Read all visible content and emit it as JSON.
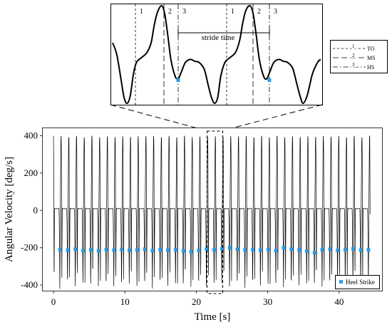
{
  "chart_data": [
    {
      "panel": "zoom-inset",
      "type": "line",
      "phase_markers": [
        {
          "number": "1",
          "name": "TO"
        },
        {
          "number": "2",
          "name": "MS"
        },
        {
          "number": "3",
          "name": "HS"
        },
        {
          "number": "1",
          "name": "TO"
        },
        {
          "number": "2",
          "name": "MS"
        },
        {
          "number": "3",
          "name": "HS"
        }
      ],
      "annotation": "stride time",
      "legend": [
        {
          "number": "1",
          "label": "TO",
          "style": "dashed"
        },
        {
          "number": "2",
          "label": "MS",
          "style": "long-dashed"
        },
        {
          "number": "3",
          "label": "HS",
          "style": "dash-dot"
        }
      ],
      "legend_placement": "right"
    },
    {
      "panel": "main",
      "type": "line",
      "xlabel": "Time [s]",
      "ylabel": "Angular Velocity [deg/s]",
      "xlim": [
        -1.5,
        46
      ],
      "ylim": [
        -430,
        440
      ],
      "xticks": [
        0,
        10,
        20,
        30,
        40
      ],
      "yticks": [
        400,
        200,
        0,
        -200,
        -400
      ],
      "grid": false,
      "cycle_count": 41,
      "cycle_period": 1.08,
      "signal": {
        "peak_max": 400,
        "trough_min": -410,
        "plateau": 10
      },
      "series": [
        {
          "name": "Heel Strike",
          "type": "scatter",
          "marker": "square",
          "color": "#2e9be6",
          "y": [
            -210,
            -213,
            -208,
            -215,
            -211,
            -216,
            -210,
            -213,
            -209,
            -214,
            -212,
            -208,
            -215,
            -210,
            -213,
            -211,
            -217,
            -221,
            -214,
            -207,
            -211,
            -205,
            -200,
            -208,
            -212,
            -210,
            -213,
            -209,
            -215,
            -200,
            -208,
            -212,
            -219,
            -226,
            -211,
            -208,
            -214,
            -210,
            -206,
            -213,
            -211
          ]
        }
      ],
      "highlight_window": [
        21.5,
        23.7
      ],
      "legend_placement": "bottom-right"
    }
  ],
  "colors": {
    "line": "#000000",
    "marker": "#2e9be6",
    "axes": "#333333"
  }
}
